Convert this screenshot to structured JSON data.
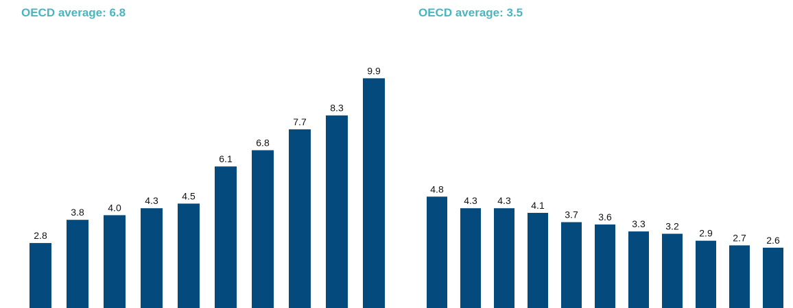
{
  "colors": {
    "bar": "#054a7d",
    "title": "#4ab5bf",
    "label": "#111111"
  },
  "chart_data": [
    {
      "type": "bar",
      "title": "OECD average: 6.8",
      "categories": [],
      "values": [
        2.8,
        3.8,
        4.0,
        4.3,
        4.5,
        6.1,
        6.8,
        7.7,
        8.3,
        9.9
      ],
      "labels": [
        "2.8",
        "3.8",
        "4.0",
        "4.3",
        "4.5",
        "6.1",
        "6.8",
        "7.7",
        "8.3",
        "9.9"
      ],
      "xlabel": "",
      "ylabel": "",
      "grid": false
    },
    {
      "type": "bar",
      "title": "OECD average: 3.5",
      "categories": [],
      "values": [
        4.8,
        4.3,
        4.3,
        4.1,
        3.7,
        3.6,
        3.3,
        3.2,
        2.9,
        2.7,
        2.6
      ],
      "labels": [
        "4.8",
        "4.3",
        "4.3",
        "4.1",
        "3.7",
        "3.6",
        "3.3",
        "3.2",
        "2.9",
        "2.7",
        "2.6"
      ],
      "xlabel": "",
      "ylabel": "",
      "grid": false
    }
  ]
}
